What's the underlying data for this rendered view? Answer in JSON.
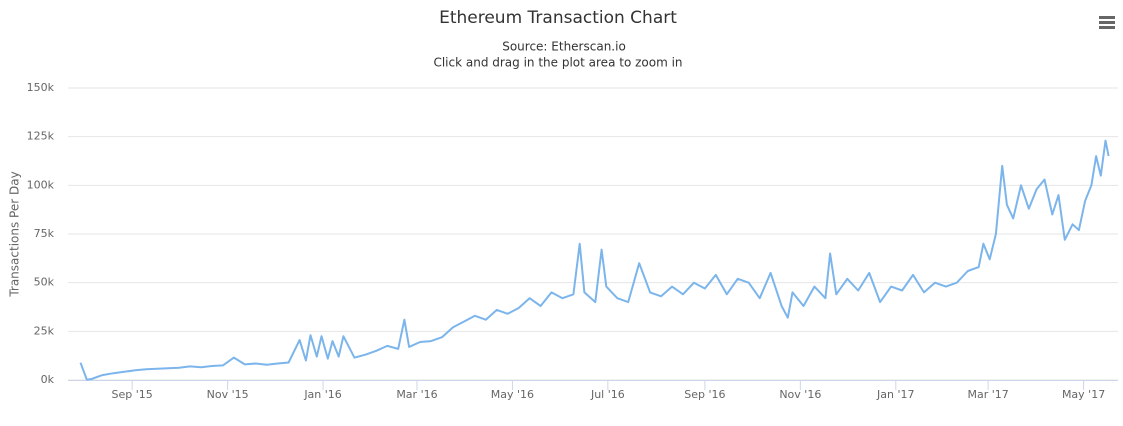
{
  "chart_data": {
    "type": "line",
    "title": "Ethereum Transaction Chart",
    "subtitle": [
      "Source: Etherscan.io",
      "Click and drag in the plot area to zoom in"
    ],
    "y_label": "Transactions Per Day",
    "color": "#7cb5ec",
    "grid": true,
    "ylim": [
      0,
      150000
    ],
    "yticks": [
      {
        "value": 0,
        "label": "0k"
      },
      {
        "value": 25000,
        "label": "25k"
      },
      {
        "value": 50000,
        "label": "50k"
      },
      {
        "value": 75000,
        "label": "75k"
      },
      {
        "value": 100000,
        "label": "100k"
      },
      {
        "value": 125000,
        "label": "125k"
      },
      {
        "value": 150000,
        "label": "150k"
      }
    ],
    "xlim": [
      "2015-07-22",
      "2017-05-23"
    ],
    "xticks": [
      {
        "value": "2015-09-01",
        "label": "Sep '15"
      },
      {
        "value": "2015-11-01",
        "label": "Nov '15"
      },
      {
        "value": "2016-01-01",
        "label": "Jan '16"
      },
      {
        "value": "2016-03-01",
        "label": "Mar '16"
      },
      {
        "value": "2016-05-01",
        "label": "May '16"
      },
      {
        "value": "2016-07-01",
        "label": "Jul '16"
      },
      {
        "value": "2016-09-01",
        "label": "Sep '16"
      },
      {
        "value": "2016-11-01",
        "label": "Nov '16"
      },
      {
        "value": "2017-01-01",
        "label": "Jan '17"
      },
      {
        "value": "2017-03-01",
        "label": "Mar '17"
      },
      {
        "value": "2017-05-01",
        "label": "May '17"
      }
    ],
    "x": [
      "2015-07-30",
      "2015-08-03",
      "2015-08-06",
      "2015-08-13",
      "2015-08-20",
      "2015-08-27",
      "2015-09-03",
      "2015-09-10",
      "2015-09-17",
      "2015-09-24",
      "2015-10-01",
      "2015-10-08",
      "2015-10-15",
      "2015-10-22",
      "2015-10-29",
      "2015-11-05",
      "2015-11-12",
      "2015-11-19",
      "2015-11-26",
      "2015-12-03",
      "2015-12-10",
      "2015-12-17",
      "2015-12-21",
      "2015-12-24",
      "2015-12-28",
      "2015-12-31",
      "2016-01-04",
      "2016-01-07",
      "2016-01-11",
      "2016-01-14",
      "2016-01-21",
      "2016-01-28",
      "2016-02-04",
      "2016-02-11",
      "2016-02-18",
      "2016-02-22",
      "2016-02-25",
      "2016-03-03",
      "2016-03-10",
      "2016-03-17",
      "2016-03-24",
      "2016-03-31",
      "2016-04-07",
      "2016-04-14",
      "2016-04-21",
      "2016-04-28",
      "2016-05-05",
      "2016-05-12",
      "2016-05-19",
      "2016-05-26",
      "2016-06-02",
      "2016-06-09",
      "2016-06-13",
      "2016-06-16",
      "2016-06-23",
      "2016-06-27",
      "2016-06-30",
      "2016-07-07",
      "2016-07-14",
      "2016-07-21",
      "2016-07-28",
      "2016-08-04",
      "2016-08-11",
      "2016-08-18",
      "2016-08-25",
      "2016-09-01",
      "2016-09-08",
      "2016-09-15",
      "2016-09-22",
      "2016-09-29",
      "2016-10-06",
      "2016-10-13",
      "2016-10-20",
      "2016-10-24",
      "2016-10-27",
      "2016-11-03",
      "2016-11-10",
      "2016-11-17",
      "2016-11-20",
      "2016-11-24",
      "2016-12-01",
      "2016-12-08",
      "2016-12-15",
      "2016-12-22",
      "2016-12-29",
      "2017-01-05",
      "2017-01-12",
      "2017-01-19",
      "2017-01-26",
      "2017-02-02",
      "2017-02-09",
      "2017-02-16",
      "2017-02-23",
      "2017-02-26",
      "2017-03-02",
      "2017-03-06",
      "2017-03-10",
      "2017-03-13",
      "2017-03-17",
      "2017-03-22",
      "2017-03-27",
      "2017-04-01",
      "2017-04-06",
      "2017-04-11",
      "2017-04-15",
      "2017-04-19",
      "2017-04-24",
      "2017-04-28",
      "2017-05-02",
      "2017-05-06",
      "2017-05-09",
      "2017-05-12",
      "2017-05-15",
      "2017-05-17"
    ],
    "values": [
      8900,
      200,
      500,
      2500,
      3500,
      4200,
      5000,
      5500,
      5800,
      6000,
      6300,
      7000,
      6500,
      7200,
      7500,
      11500,
      8000,
      8500,
      7800,
      8500,
      9000,
      20500,
      10000,
      23000,
      12000,
      22500,
      11000,
      20000,
      12000,
      22500,
      11500,
      13000,
      15000,
      17500,
      16000,
      31000,
      17000,
      19500,
      20000,
      22000,
      27000,
      30000,
      33000,
      31000,
      36000,
      34000,
      37000,
      42000,
      38000,
      45000,
      42000,
      44000,
      70000,
      45000,
      40000,
      67000,
      48000,
      42000,
      40000,
      60000,
      45000,
      43000,
      48000,
      44000,
      50000,
      47000,
      54000,
      44000,
      52000,
      50000,
      42000,
      55000,
      38000,
      32000,
      45000,
      38000,
      48000,
      42000,
      65000,
      44000,
      52000,
      46000,
      55000,
      40000,
      48000,
      46000,
      54000,
      45000,
      50000,
      48000,
      50000,
      56000,
      58000,
      70000,
      62000,
      75000,
      110000,
      90000,
      83000,
      100000,
      88000,
      98000,
      103000,
      85000,
      95000,
      72000,
      80000,
      77000,
      92000,
      100000,
      115000,
      105000,
      123000,
      115000
    ]
  }
}
